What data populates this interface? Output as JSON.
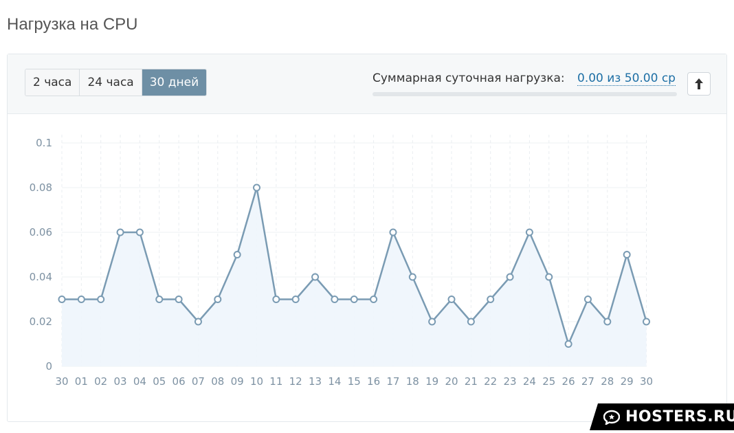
{
  "page": {
    "title": "Нагрузка на CPU"
  },
  "range_tabs": [
    {
      "label": "2 часа",
      "active": false
    },
    {
      "label": "24 часа",
      "active": false
    },
    {
      "label": "30 дней",
      "active": true
    }
  ],
  "daily_load": {
    "label": "Суммарная суточная нагрузка:",
    "value_text": "0.00 из 50.00 ср",
    "fraction": 0.0
  },
  "colors": {
    "accent": "#6e8fa5",
    "line": "#7a9bb3",
    "fill": "#eef5fc",
    "link": "#1d6fa5"
  },
  "chart_data": {
    "type": "area",
    "categories": [
      "30",
      "01",
      "02",
      "03",
      "04",
      "05",
      "06",
      "07",
      "08",
      "09",
      "10",
      "11",
      "12",
      "13",
      "14",
      "15",
      "16",
      "17",
      "18",
      "19",
      "20",
      "21",
      "22",
      "23",
      "24",
      "25",
      "26",
      "27",
      "28",
      "29",
      "30"
    ],
    "values": [
      0.03,
      0.03,
      0.03,
      0.06,
      0.06,
      0.03,
      0.03,
      0.02,
      0.03,
      0.05,
      0.08,
      0.03,
      0.03,
      0.04,
      0.03,
      0.03,
      0.03,
      0.06,
      0.04,
      0.02,
      0.03,
      0.02,
      0.03,
      0.04,
      0.06,
      0.04,
      0.01,
      0.03,
      0.02,
      0.05,
      0.02
    ],
    "y_ticks": [
      "0",
      "0.02",
      "0.04",
      "0.06",
      "0.08",
      "0.1"
    ],
    "ylim": [
      0,
      0.1
    ],
    "grid": true,
    "markers": true
  },
  "watermark": {
    "text": "HOSTERS.RU",
    "icon": "chat-bubble-icon"
  }
}
